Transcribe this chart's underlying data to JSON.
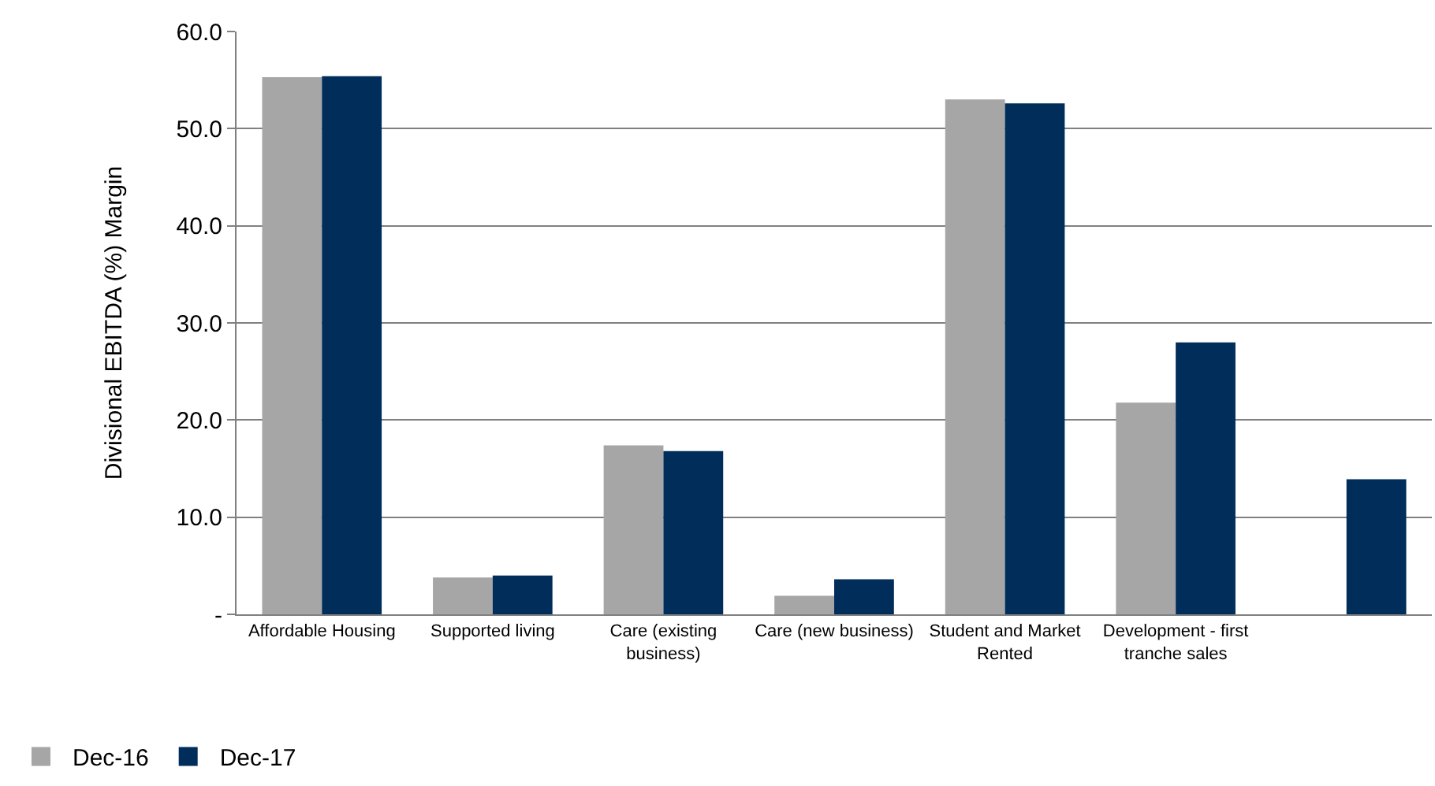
{
  "chart_data": {
    "type": "bar",
    "ylabel": "Divisional EBITDA (%) Margin",
    "categories": [
      "Affordable Housing",
      "Supported living",
      "Care (existing\nbusiness)",
      "Care (new business)",
      "Student and Market\nRented",
      "Development - first\ntranche sales",
      null
    ],
    "series": [
      {
        "name": "Dec-16",
        "color": "#a6a6a6",
        "values": [
          55.3,
          3.8,
          17.4,
          1.9,
          53.0,
          21.8,
          null
        ]
      },
      {
        "name": "Dec-17",
        "color": "#002d5a",
        "values": [
          55.4,
          4.0,
          16.8,
          3.6,
          52.6,
          28.0,
          13.9
        ]
      }
    ],
    "ylim": [
      0,
      60
    ],
    "yticks": [
      {
        "value": 0,
        "label": "-"
      },
      {
        "value": 10,
        "label": "10.0"
      },
      {
        "value": 20,
        "label": "20.0"
      },
      {
        "value": 30,
        "label": "30.0"
      },
      {
        "value": 40,
        "label": "40.0"
      },
      {
        "value": 50,
        "label": "50.0"
      },
      {
        "value": 60,
        "label": "60.0"
      }
    ],
    "grid": "y",
    "legend": "bottom left"
  }
}
